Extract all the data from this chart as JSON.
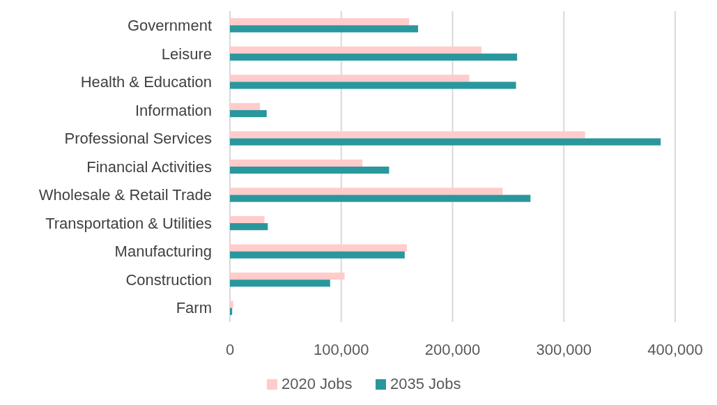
{
  "chart_data": {
    "type": "bar",
    "orientation": "horizontal",
    "categories": [
      "Government",
      "Leisure",
      "Health & Education",
      "Information",
      "Professional Services",
      "Financial Activities",
      "Wholesale & Retail Trade",
      "Transportation & Utilities",
      "Manufacturing",
      "Construction",
      "Farm"
    ],
    "series": [
      {
        "name": "2020 Jobs",
        "color": "#ffcccb",
        "values": [
          161000,
          226000,
          215000,
          27000,
          319000,
          119000,
          245000,
          31000,
          159000,
          103000,
          3000
        ]
      },
      {
        "name": "2035 Jobs",
        "color": "#2a979e",
        "values": [
          169000,
          258000,
          257000,
          33000,
          387000,
          143000,
          270000,
          34000,
          157000,
          90000,
          2000
        ]
      }
    ],
    "xlim": [
      0,
      400000
    ],
    "xticks": [
      {
        "value": 0,
        "label": "0"
      },
      {
        "value": 100000,
        "label": "100,000"
      },
      {
        "value": 200000,
        "label": "200,000"
      },
      {
        "value": 300000,
        "label": "300,000"
      },
      {
        "value": 400000,
        "label": "400,000"
      }
    ],
    "grid": "x",
    "legend": "bottom"
  }
}
